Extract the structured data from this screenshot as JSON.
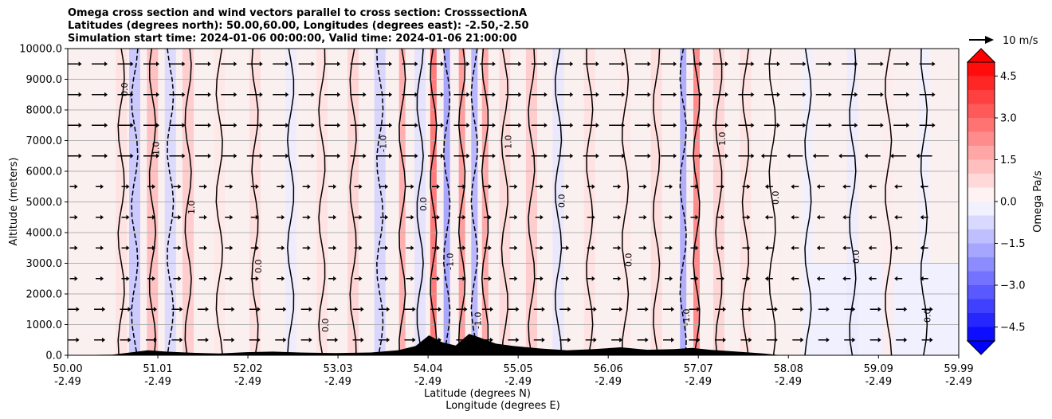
{
  "title_lines": [
    "Omega cross section and wind vectors parallel to cross section: CrosssectionA",
    "Latitudes (degrees north): 50.00,60.00, Longitudes (degrees east): -2.50,-2.50",
    "Simulation start time: 2024-01-06 00:00:00, Valid time: 2024-01-06 21:00:00"
  ],
  "chart_data": {
    "type": "heatmap",
    "variable": "Omega",
    "overlays": [
      "contour",
      "wind-vectors",
      "terrain"
    ],
    "ylabel": "Altitude (meters)",
    "xlabel_lines": [
      "Latitude (degrees N)",
      "Longitude (degrees E)"
    ],
    "ylim": [
      0,
      10000
    ],
    "y_ticks": [
      "0.0",
      "1000.0",
      "2000.0",
      "3000.0",
      "4000.0",
      "5000.0",
      "6000.0",
      "7000.0",
      "8000.0",
      "9000.0",
      "10000.0"
    ],
    "y_tick_values": [
      0,
      1000,
      2000,
      3000,
      4000,
      5000,
      6000,
      7000,
      8000,
      9000,
      10000
    ],
    "x_ticks": [
      {
        "lat": "50.00",
        "lon": "-2.49"
      },
      {
        "lat": "51.01",
        "lon": "-2.49"
      },
      {
        "lat": "52.02",
        "lon": "-2.49"
      },
      {
        "lat": "53.03",
        "lon": "-2.49"
      },
      {
        "lat": "54.04",
        "lon": "-2.49"
      },
      {
        "lat": "55.05",
        "lon": "-2.49"
      },
      {
        "lat": "56.06",
        "lon": "-2.49"
      },
      {
        "lat": "57.07",
        "lon": "-2.49"
      },
      {
        "lat": "58.08",
        "lon": "-2.49"
      },
      {
        "lat": "59.09",
        "lon": "-2.49"
      },
      {
        "lat": "59.99",
        "lon": "-2.49"
      }
    ],
    "xlim": [
      50.0,
      59.99
    ],
    "colorbar": {
      "label": "Omega Pa/s",
      "min": -5.0,
      "max": 5.0,
      "extend": "both",
      "tick_values": [
        -4.5,
        -3.0,
        -1.5,
        0.0,
        1.5,
        3.0,
        4.5
      ],
      "tick_labels": [
        "−4.5",
        "−3.0",
        "−1.5",
        "0.0",
        "1.5",
        "3.0",
        "4.5"
      ],
      "levels": 20
    },
    "quiver_key_label": "10 m/s",
    "contour_labels": [
      "0.0",
      "1.0",
      "-1.0"
    ],
    "bands": [
      {
        "lat": 50.6,
        "omega": 0.6
      },
      {
        "lat": 50.75,
        "omega": -1.2
      },
      {
        "lat": 50.95,
        "omega": 1.4
      },
      {
        "lat": 51.15,
        "omega": -0.8
      },
      {
        "lat": 51.35,
        "omega": 1.1
      },
      {
        "lat": 51.7,
        "omega": 0.5
      },
      {
        "lat": 52.1,
        "omega": 0.7
      },
      {
        "lat": 52.5,
        "omega": -0.4
      },
      {
        "lat": 52.85,
        "omega": 0.6
      },
      {
        "lat": 53.2,
        "omega": 0.9
      },
      {
        "lat": 53.5,
        "omega": -0.9
      },
      {
        "lat": 53.75,
        "omega": 1.8
      },
      {
        "lat": 53.95,
        "omega": -0.6
      },
      {
        "lat": 54.1,
        "omega": 3.0
      },
      {
        "lat": 54.25,
        "omega": -2.0
      },
      {
        "lat": 54.42,
        "omega": 2.2
      },
      {
        "lat": 54.56,
        "omega": -1.6
      },
      {
        "lat": 54.68,
        "omega": 1.9
      },
      {
        "lat": 54.9,
        "omega": 0.8
      },
      {
        "lat": 55.2,
        "omega": 1.1
      },
      {
        "lat": 55.5,
        "omega": -0.5
      },
      {
        "lat": 55.85,
        "omega": 0.6
      },
      {
        "lat": 56.25,
        "omega": 0.5
      },
      {
        "lat": 56.6,
        "omega": 0.7
      },
      {
        "lat": 56.9,
        "omega": -1.8
      },
      {
        "lat": 57.05,
        "omega": 2.6
      },
      {
        "lat": 57.3,
        "omega": 0.9
      },
      {
        "lat": 57.6,
        "omega": 0.6
      },
      {
        "lat": 57.9,
        "omega": 0.3
      },
      {
        "lat": 58.3,
        "omega": -0.3
      },
      {
        "lat": 58.8,
        "omega": -0.4
      },
      {
        "lat": 59.2,
        "omega": 0.4
      },
      {
        "lat": 59.6,
        "omega": -0.3
      }
    ],
    "terrain": [
      {
        "lat": 50.0,
        "alt": 0
      },
      {
        "lat": 50.5,
        "alt": 20
      },
      {
        "lat": 50.7,
        "alt": 90
      },
      {
        "lat": 50.9,
        "alt": 160
      },
      {
        "lat": 51.1,
        "alt": 120
      },
      {
        "lat": 51.4,
        "alt": 80
      },
      {
        "lat": 51.7,
        "alt": 60
      },
      {
        "lat": 52.0,
        "alt": 100
      },
      {
        "lat": 52.3,
        "alt": 120
      },
      {
        "lat": 52.6,
        "alt": 90
      },
      {
        "lat": 53.0,
        "alt": 70
      },
      {
        "lat": 53.4,
        "alt": 90
      },
      {
        "lat": 53.7,
        "alt": 160
      },
      {
        "lat": 53.9,
        "alt": 300
      },
      {
        "lat": 54.05,
        "alt": 650
      },
      {
        "lat": 54.2,
        "alt": 420
      },
      {
        "lat": 54.35,
        "alt": 320
      },
      {
        "lat": 54.5,
        "alt": 700
      },
      {
        "lat": 54.62,
        "alt": 580
      },
      {
        "lat": 54.8,
        "alt": 380
      },
      {
        "lat": 55.0,
        "alt": 300
      },
      {
        "lat": 55.3,
        "alt": 220
      },
      {
        "lat": 55.6,
        "alt": 160
      },
      {
        "lat": 55.9,
        "alt": 200
      },
      {
        "lat": 56.2,
        "alt": 260
      },
      {
        "lat": 56.5,
        "alt": 180
      },
      {
        "lat": 56.8,
        "alt": 200
      },
      {
        "lat": 57.0,
        "alt": 240
      },
      {
        "lat": 57.2,
        "alt": 180
      },
      {
        "lat": 57.5,
        "alt": 120
      },
      {
        "lat": 57.8,
        "alt": 60
      },
      {
        "lat": 58.0,
        "alt": 0
      },
      {
        "lat": 59.99,
        "alt": 0
      }
    ]
  }
}
